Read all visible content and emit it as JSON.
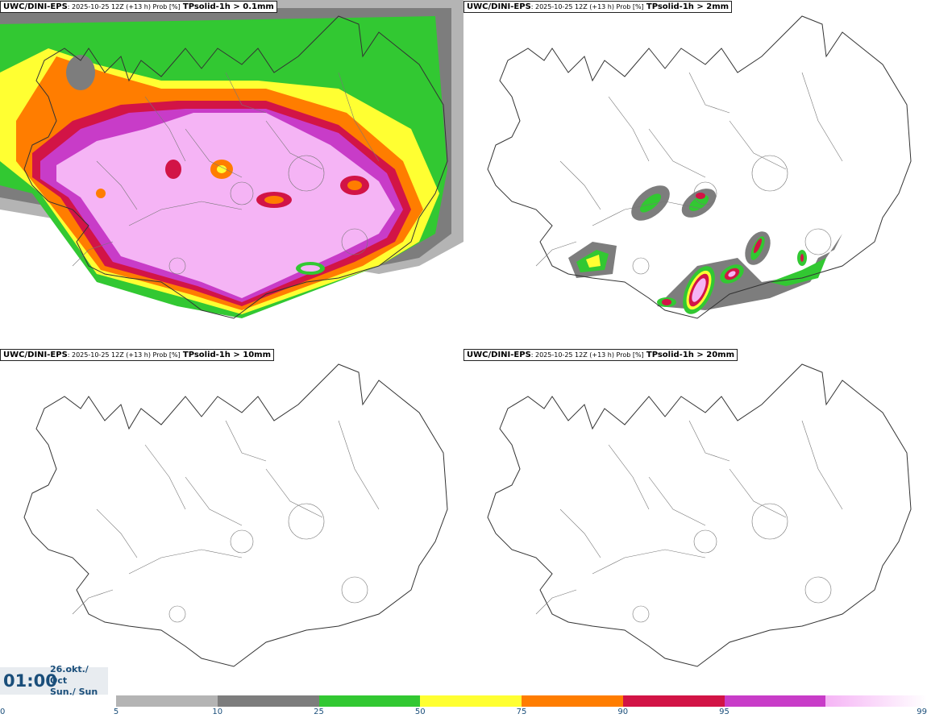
{
  "panels": [
    {
      "model": "UWC/DINI-EPS",
      "run": ": 2025-10-25 12Z (+13 h) Prob [%]",
      "param": "TPsolid-1h > 0.1mm"
    },
    {
      "model": "UWC/DINI-EPS",
      "run": ": 2025-10-25 12Z (+13 h) Prob [%]",
      "param": "TPsolid-1h > 2mm"
    },
    {
      "model": "UWC/DINI-EPS",
      "run": ": 2025-10-25 12Z (+13 h) Prob [%]",
      "param": "TPsolid-1h > 10mm"
    },
    {
      "model": "UWC/DINI-EPS",
      "run": ": 2025-10-25 12Z (+13 h) Prob [%]",
      "param": "TPsolid-1h > 20mm"
    }
  ],
  "valid_time": {
    "time": "01:00",
    "date": "26.okt./ Oct",
    "day": "Sun./ Sun"
  },
  "legend": {
    "ticks": [
      "0",
      "5",
      "10",
      "25",
      "50",
      "75",
      "90",
      "95",
      "99"
    ],
    "colors": [
      "#b4b4b4",
      "#7d7d7d",
      "#32c832",
      "#ffff32",
      "#ff7d00",
      "#d21446",
      "#c83cc8",
      "#f5b4f5"
    ]
  }
}
